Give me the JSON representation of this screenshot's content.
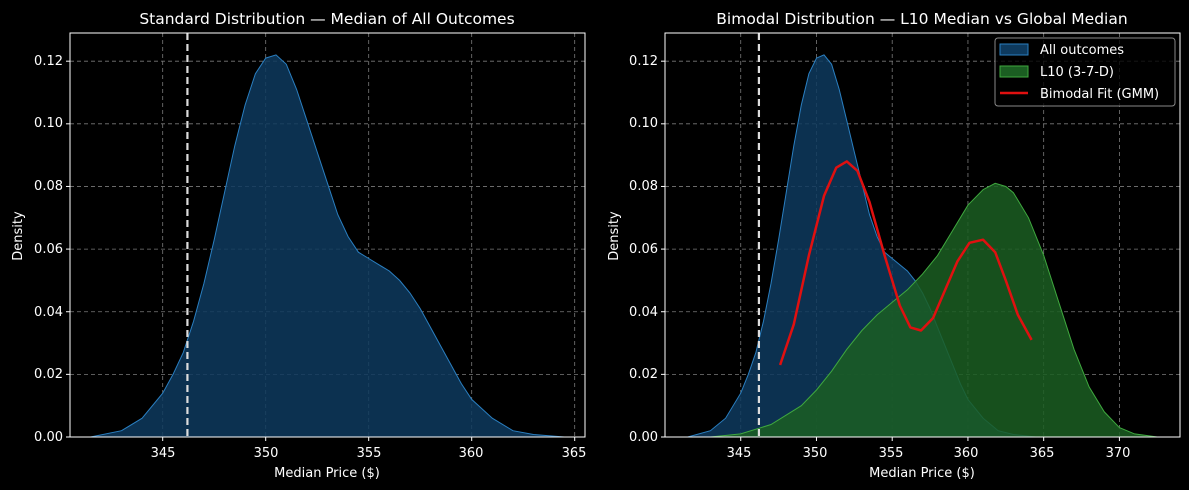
{
  "colors": {
    "background": "#000000",
    "all_outcomes_fill": "#0e3a5e",
    "all_outcomes_line": "#2a7fc1",
    "l10_fill": "#1b5e22",
    "l10_line": "#3fa83f",
    "gmm_line": "#e01010",
    "grid": "#7a7a7a",
    "marker_line": "#dddddd",
    "text": "#ffffff"
  },
  "chart_data": [
    {
      "type": "area",
      "title": "Standard Distribution — Median of All Outcomes",
      "xlabel": "Median Price ($)",
      "ylabel": "Density",
      "xlim": [
        340.5,
        365.5
      ],
      "ylim": [
        0,
        0.129
      ],
      "xticks": [
        345,
        350,
        355,
        360,
        365
      ],
      "xtick_labels": [
        "345",
        "350",
        "355",
        "360",
        "365"
      ],
      "yticks": [
        0,
        0.02,
        0.04,
        0.06,
        0.08,
        0.1,
        0.12
      ],
      "ytick_labels": [
        "0.00",
        "0.02",
        "0.04",
        "0.06",
        "0.08",
        "0.10",
        "0.12"
      ],
      "grid": true,
      "vertical_marker_x": 346.2,
      "series": [
        {
          "name": "All outcomes",
          "x": [
            341.5,
            343,
            344,
            345,
            345.5,
            346,
            346.5,
            347,
            347.5,
            348,
            348.5,
            349,
            349.5,
            350,
            350.5,
            351,
            351.5,
            352,
            352.5,
            353,
            353.5,
            354,
            354.5,
            355,
            355.5,
            356,
            356.5,
            357,
            357.5,
            358,
            358.5,
            359,
            359.5,
            360,
            361,
            362,
            363,
            364.5
          ],
          "y": [
            0.0,
            0.002,
            0.006,
            0.014,
            0.02,
            0.027,
            0.037,
            0.049,
            0.063,
            0.078,
            0.093,
            0.106,
            0.116,
            0.121,
            0.122,
            0.119,
            0.111,
            0.101,
            0.091,
            0.081,
            0.071,
            0.064,
            0.059,
            0.057,
            0.055,
            0.053,
            0.05,
            0.046,
            0.041,
            0.035,
            0.029,
            0.023,
            0.017,
            0.012,
            0.006,
            0.002,
            0.0008,
            0.0
          ]
        }
      ]
    },
    {
      "type": "area",
      "title": "Bimodal Distribution — L10 Median vs Global Median",
      "xlabel": "Median Price ($)",
      "ylabel": "Density",
      "xlim": [
        340,
        374
      ],
      "ylim": [
        0,
        0.129
      ],
      "xticks": [
        345,
        350,
        355,
        360,
        365,
        370
      ],
      "xtick_labels": [
        "345",
        "350",
        "355",
        "360",
        "365",
        "370"
      ],
      "yticks": [
        0,
        0.02,
        0.04,
        0.06,
        0.08,
        0.1,
        0.12
      ],
      "ytick_labels": [
        "0.00",
        "0.02",
        "0.04",
        "0.06",
        "0.08",
        "0.10",
        "0.12"
      ],
      "grid": true,
      "vertical_marker_x": 346.2,
      "legend_position": "top-right",
      "series": [
        {
          "name": "All outcomes",
          "kind": "area",
          "x": [
            341.5,
            343,
            344,
            345,
            345.5,
            346,
            346.5,
            347,
            347.5,
            348,
            348.5,
            349,
            349.5,
            350,
            350.5,
            351,
            351.5,
            352,
            352.5,
            353,
            353.5,
            354,
            354.5,
            355,
            355.5,
            356,
            356.5,
            357,
            357.5,
            358,
            358.5,
            359,
            359.5,
            360,
            361,
            362,
            363,
            364.5
          ],
          "y": [
            0.0,
            0.002,
            0.006,
            0.014,
            0.02,
            0.027,
            0.037,
            0.049,
            0.063,
            0.078,
            0.093,
            0.106,
            0.116,
            0.121,
            0.122,
            0.119,
            0.111,
            0.101,
            0.091,
            0.081,
            0.071,
            0.064,
            0.059,
            0.057,
            0.055,
            0.053,
            0.05,
            0.046,
            0.041,
            0.035,
            0.029,
            0.023,
            0.017,
            0.012,
            0.006,
            0.002,
            0.0008,
            0.0
          ]
        },
        {
          "name": "L10 (3-7-D)",
          "kind": "area",
          "x": [
            343,
            345,
            347,
            349,
            350,
            351,
            352,
            353,
            354,
            355,
            356,
            357,
            358,
            359,
            360,
            361,
            361.8,
            362.5,
            363,
            364,
            365,
            366,
            367,
            368,
            369,
            370,
            371,
            372.5
          ],
          "y": [
            0.0,
            0.001,
            0.004,
            0.01,
            0.015,
            0.021,
            0.028,
            0.034,
            0.039,
            0.043,
            0.047,
            0.052,
            0.058,
            0.066,
            0.074,
            0.079,
            0.081,
            0.08,
            0.078,
            0.07,
            0.058,
            0.043,
            0.028,
            0.016,
            0.008,
            0.003,
            0.001,
            0.0
          ]
        },
        {
          "name": "Bimodal Fit (GMM)",
          "kind": "line",
          "x": [
            347.6,
            348.5,
            349.5,
            350.5,
            351.3,
            352,
            352.7,
            353.5,
            354.5,
            355.5,
            356.2,
            356.9,
            357.7,
            358.5,
            359.3,
            360.1,
            361,
            361.8,
            362.5,
            363.3,
            364.2
          ],
          "y": [
            0.023,
            0.036,
            0.058,
            0.077,
            0.086,
            0.088,
            0.085,
            0.075,
            0.058,
            0.042,
            0.035,
            0.034,
            0.038,
            0.047,
            0.056,
            0.062,
            0.063,
            0.059,
            0.05,
            0.039,
            0.031
          ]
        }
      ]
    }
  ]
}
